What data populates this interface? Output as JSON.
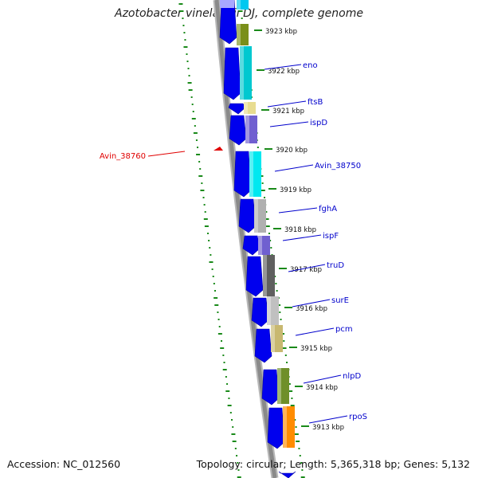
{
  "title": "Azotobacter vinelandii DJ, complete genome",
  "footer": {
    "accession": "Accession: NC_012560",
    "summary": "Topology: circular; Length: 5,365,318 bp; Genes: 5,132"
  },
  "colors": {
    "backbone": "#8a8a8a",
    "minus_strand_gene": "#0000ee",
    "label_line": "#0000cc",
    "highlight": "#e00000",
    "gc_dots": "#1a8a1a"
  },
  "ruler_labels": [
    "3923 kbp",
    "3922 kbp",
    "3921 kbp",
    "3920 kbp",
    "3919 kbp",
    "3918 kbp",
    "3917 kbp",
    "3916 kbp",
    "3915 kbp",
    "3914 kbp",
    "3913 kbp"
  ],
  "gene_labels": [
    "eno",
    "ftsB",
    "ispD",
    "Avin_38750",
    "fghA",
    "ispF",
    "truD",
    "surE",
    "pcm",
    "nlpD",
    "rpoS"
  ],
  "highlight_label": "Avin_38760",
  "cog_colors": [
    "#7a8f1a",
    "#00c8d0",
    "#e8dc90",
    "#7060d0",
    "#00e8f0",
    "#b0b0b0",
    "#7060d0",
    "#606060",
    "#c0c0c0",
    "#c8b870",
    "#6f8f2a",
    "#ff8c00"
  ]
}
